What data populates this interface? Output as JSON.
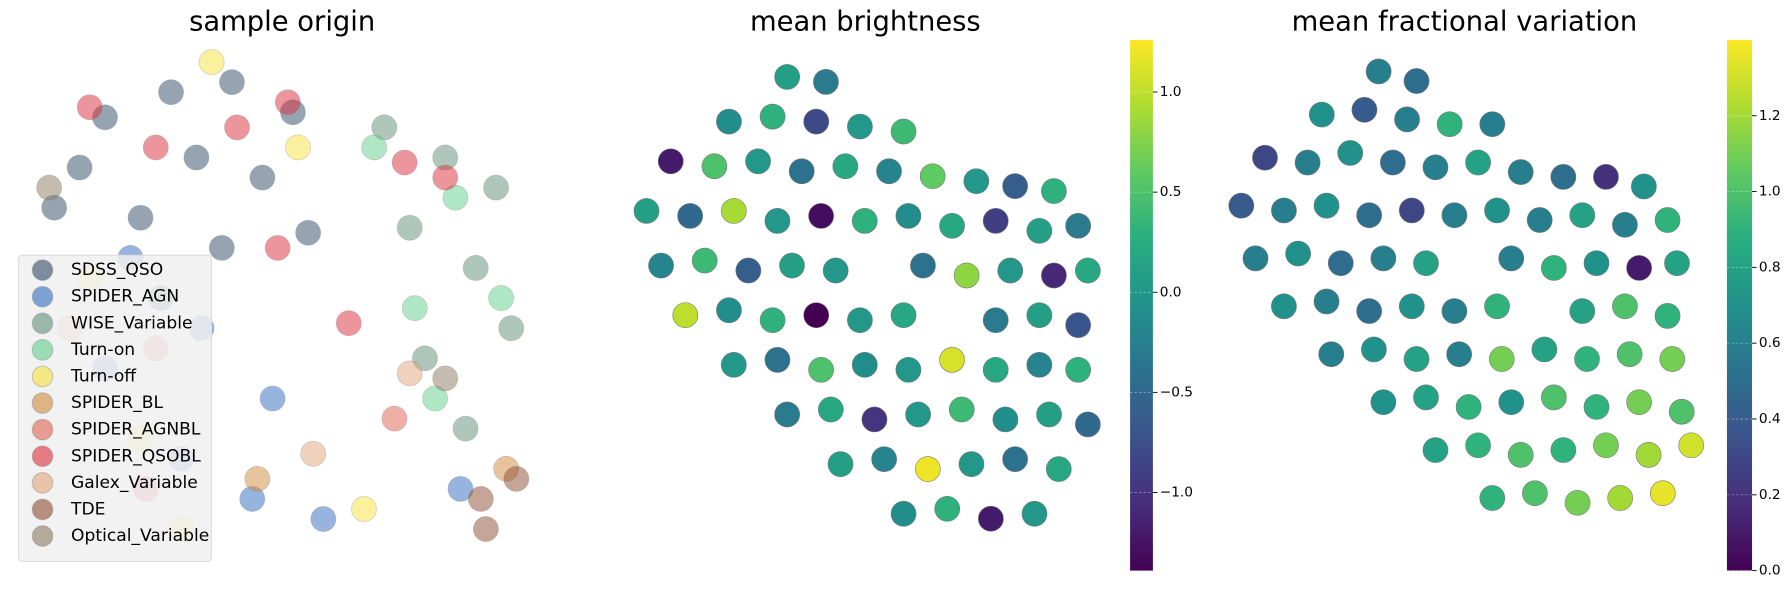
{
  "chart_data": [
    {
      "type": "scatter",
      "title": "sample origin",
      "xlim": [
        0,
        10
      ],
      "ylim": [
        0,
        10
      ],
      "alpha": 0.5,
      "legend": "lower left",
      "series": [
        {
          "name": "SDSS_QSO",
          "color": "#2e4a66",
          "x": [
            1.5,
            2.8,
            4.0,
            5.2,
            1.0,
            3.3,
            4.6,
            2.2,
            0.5,
            3.8,
            5.5,
            2.6
          ],
          "y": [
            8.8,
            9.3,
            9.5,
            8.9,
            7.8,
            8.0,
            7.6,
            6.8,
            7.0,
            6.2,
            6.5,
            5.2
          ]
        },
        {
          "name": "SPIDER_AGN",
          "color": "#2f6ac0",
          "x": [
            2.0,
            3.4,
            4.8,
            1.5,
            3.0,
            4.4,
            5.8,
            8.5
          ],
          "y": [
            6.0,
            4.6,
            3.2,
            3.8,
            2.0,
            1.2,
            0.8,
            1.4
          ]
        },
        {
          "name": "WISE_Variable",
          "color": "#5f8f78",
          "x": [
            7.0,
            8.2,
            9.2,
            7.5,
            8.8,
            9.5,
            7.8,
            8.6
          ],
          "y": [
            8.6,
            8.0,
            7.4,
            6.6,
            5.8,
            4.6,
            4.0,
            2.6
          ]
        },
        {
          "name": "Turn-on",
          "color": "#5fcf8a",
          "x": [
            6.8,
            8.4,
            9.3,
            7.6,
            8.0
          ],
          "y": [
            8.2,
            7.2,
            5.2,
            5.0,
            3.2
          ]
        },
        {
          "name": "Turn-off",
          "color": "#f5e13c",
          "x": [
            3.6,
            5.3,
            1.2,
            2.2,
            6.6,
            3.0
          ],
          "y": [
            9.9,
            8.2,
            5.6,
            2.4,
            1.0,
            0.6
          ]
        },
        {
          "name": "SPIDER_BL",
          "color": "#d28a3c",
          "x": [
            4.5,
            9.4
          ],
          "y": [
            1.6,
            1.8
          ]
        },
        {
          "name": "SPIDER_AGNBL",
          "color": "#e06050",
          "x": [
            2.5,
            7.2
          ],
          "y": [
            4.2,
            2.8
          ]
        },
        {
          "name": "SPIDER_QSOBL",
          "color": "#dc2c3a",
          "x": [
            1.2,
            2.5,
            4.1,
            5.1,
            7.4,
            8.2,
            4.9,
            6.3,
            2.3
          ],
          "y": [
            9.0,
            8.2,
            8.6,
            9.1,
            7.9,
            7.6,
            6.2,
            4.7,
            1.4
          ]
        },
        {
          "name": "Galex_Variable",
          "color": "#e2a57a",
          "x": [
            0.8,
            7.5,
            5.6
          ],
          "y": [
            4.6,
            3.7,
            2.1
          ]
        },
        {
          "name": "TDE",
          "color": "#8c4b30",
          "x": [
            8.9,
            9.6,
            9.0
          ],
          "y": [
            1.2,
            1.6,
            0.6
          ]
        },
        {
          "name": "Optical_Variable",
          "color": "#8b7a60",
          "x": [
            0.4,
            8.2
          ],
          "y": [
            7.4,
            3.6
          ]
        }
      ]
    },
    {
      "type": "scatter",
      "title": "mean brightness",
      "xlim": [
        0,
        10
      ],
      "ylim": [
        0,
        10
      ],
      "colormap": "viridis",
      "clim": [
        -1.39,
        1.26
      ],
      "cticks": [
        {
          "value": -1.0,
          "label": "−1.0"
        },
        {
          "value": -0.5,
          "label": "−0.5"
        },
        {
          "value": 0.0,
          "label": "0.0"
        },
        {
          "value": 0.5,
          "label": "0.5"
        },
        {
          "value": 1.0,
          "label": "1.0"
        }
      ],
      "x": [
        3.4,
        4.2,
        2.2,
        3.1,
        4.0,
        4.9,
        5.8,
        1.0,
        1.9,
        2.8,
        3.7,
        4.6,
        5.5,
        6.4,
        7.3,
        8.1,
        8.9,
        0.5,
        1.4,
        2.3,
        3.2,
        4.1,
        5.0,
        5.9,
        6.8,
        7.7,
        8.6,
        9.4,
        0.8,
        1.7,
        2.6,
        3.5,
        4.4,
        6.2,
        7.1,
        8.0,
        8.9,
        9.6,
        1.3,
        2.2,
        3.1,
        4.0,
        4.9,
        5.8,
        7.7,
        8.6,
        9.4,
        2.3,
        3.2,
        4.1,
        5.0,
        5.9,
        6.8,
        7.7,
        8.6,
        9.4,
        3.4,
        4.3,
        5.2,
        6.1,
        7.0,
        7.9,
        8.8,
        9.6,
        4.5,
        5.4,
        6.3,
        7.2,
        8.1,
        9.0,
        5.8,
        6.7,
        7.6,
        8.5
      ],
      "y": [
        9.6,
        9.5,
        8.7,
        8.8,
        8.7,
        8.6,
        8.5,
        7.9,
        7.8,
        7.9,
        7.7,
        7.8,
        7.7,
        7.6,
        7.5,
        7.4,
        7.3,
        6.9,
        6.8,
        6.9,
        6.7,
        6.8,
        6.7,
        6.8,
        6.6,
        6.7,
        6.5,
        6.6,
        5.8,
        5.9,
        5.7,
        5.8,
        5.7,
        5.8,
        5.6,
        5.7,
        5.6,
        5.7,
        4.8,
        4.9,
        4.7,
        4.8,
        4.7,
        4.8,
        4.7,
        4.8,
        4.6,
        3.8,
        3.9,
        3.7,
        3.8,
        3.7,
        3.9,
        3.7,
        3.8,
        3.7,
        2.8,
        2.9,
        2.7,
        2.8,
        2.9,
        2.7,
        2.8,
        2.6,
        1.8,
        1.9,
        1.7,
        1.8,
        1.9,
        1.7,
        0.8,
        0.9,
        0.7,
        0.8
      ],
      "color_values": [
        0.1,
        -0.3,
        -0.1,
        0.3,
        -0.8,
        0.0,
        0.4,
        -1.2,
        0.5,
        0.0,
        -0.4,
        0.2,
        -0.2,
        0.6,
        0.0,
        -0.6,
        0.3,
        0.1,
        -0.5,
        0.9,
        0.0,
        -1.3,
        0.3,
        -0.1,
        0.2,
        -0.9,
        0.1,
        -0.3,
        -0.2,
        0.4,
        -0.6,
        0.1,
        0.0,
        -0.4,
        0.8,
        0.0,
        -1.1,
        0.2,
        1.0,
        -0.1,
        0.3,
        -1.4,
        0.0,
        0.2,
        -0.3,
        0.1,
        -0.7,
        0.0,
        -0.4,
        0.5,
        -0.1,
        0.0,
        1.1,
        0.2,
        -0.2,
        0.3,
        -0.3,
        0.2,
        -1.0,
        0.0,
        0.4,
        -0.1,
        0.1,
        -0.5,
        0.1,
        -0.2,
        1.2,
        0.0,
        -0.4,
        0.2,
        -0.1,
        0.3,
        -1.2,
        0.0
      ]
    },
    {
      "type": "scatter",
      "title": "mean fractional variation",
      "xlim": [
        0,
        10
      ],
      "ylim": [
        0,
        10
      ],
      "colormap": "viridis",
      "clim": [
        0,
        1.4
      ],
      "cticks": [
        {
          "value": 0.0,
          "label": "0.0"
        },
        {
          "value": 0.2,
          "label": "0.2"
        },
        {
          "value": 0.4,
          "label": "0.4"
        },
        {
          "value": 0.6,
          "label": "0.6"
        },
        {
          "value": 0.8,
          "label": "0.8"
        },
        {
          "value": 1.0,
          "label": "1.0"
        },
        {
          "value": 1.2,
          "label": "1.2"
        }
      ],
      "x": [
        3.2,
        4.0,
        2.0,
        2.9,
        3.8,
        4.7,
        5.6,
        0.8,
        1.7,
        2.6,
        3.5,
        4.4,
        5.3,
        6.2,
        7.1,
        8.0,
        8.8,
        0.3,
        1.2,
        2.1,
        3.0,
        3.9,
        4.8,
        5.7,
        6.6,
        7.5,
        8.4,
        9.3,
        0.6,
        1.5,
        2.4,
        3.3,
        4.2,
        6.0,
        6.9,
        7.8,
        8.7,
        9.5,
        1.2,
        2.1,
        3.0,
        3.9,
        4.8,
        5.7,
        7.5,
        8.4,
        9.3,
        2.2,
        3.1,
        4.0,
        4.9,
        5.8,
        6.7,
        7.6,
        8.5,
        9.4,
        3.3,
        4.2,
        5.1,
        6.0,
        6.9,
        7.8,
        8.7,
        9.6,
        4.4,
        5.3,
        6.2,
        7.1,
        8.0,
        8.9,
        9.8,
        5.6,
        6.5,
        7.4,
        8.3,
        9.2
      ],
      "y": [
        9.7,
        9.5,
        8.8,
        8.9,
        8.7,
        8.6,
        8.6,
        7.9,
        7.8,
        8.0,
        7.8,
        7.7,
        7.8,
        7.6,
        7.5,
        7.5,
        7.3,
        6.9,
        6.8,
        6.9,
        6.7,
        6.8,
        6.7,
        6.8,
        6.6,
        6.7,
        6.5,
        6.6,
        5.8,
        5.9,
        5.7,
        5.8,
        5.7,
        5.8,
        5.6,
        5.7,
        5.6,
        5.7,
        4.8,
        4.9,
        4.7,
        4.8,
        4.7,
        4.8,
        4.7,
        4.8,
        4.6,
        3.8,
        3.9,
        3.7,
        3.8,
        3.7,
        3.9,
        3.7,
        3.8,
        3.7,
        2.8,
        2.9,
        2.7,
        2.8,
        2.9,
        2.7,
        2.8,
        2.6,
        1.8,
        1.9,
        1.7,
        1.8,
        1.9,
        1.7,
        1.9,
        0.8,
        0.9,
        0.7,
        0.8,
        0.9
      ],
      "color_values": [
        0.6,
        0.5,
        0.7,
        0.4,
        0.6,
        0.9,
        0.6,
        0.3,
        0.6,
        0.7,
        0.5,
        0.6,
        0.8,
        0.6,
        0.5,
        0.2,
        0.7,
        0.4,
        0.6,
        0.7,
        0.5,
        0.3,
        0.6,
        0.7,
        0.6,
        0.8,
        0.6,
        0.9,
        0.6,
        0.7,
        0.5,
        0.6,
        0.8,
        0.6,
        0.9,
        0.7,
        0.1,
        0.8,
        0.7,
        0.6,
        0.5,
        0.7,
        0.6,
        0.9,
        0.8,
        1.0,
        0.9,
        0.6,
        0.7,
        0.8,
        0.6,
        1.1,
        0.8,
        0.9,
        1.0,
        1.1,
        0.7,
        0.8,
        0.9,
        0.7,
        1.0,
        0.9,
        1.1,
        1.0,
        0.8,
        0.9,
        1.0,
        0.9,
        1.1,
        1.2,
        1.3,
        0.9,
        1.0,
        1.1,
        1.2,
        1.35
      ]
    }
  ]
}
